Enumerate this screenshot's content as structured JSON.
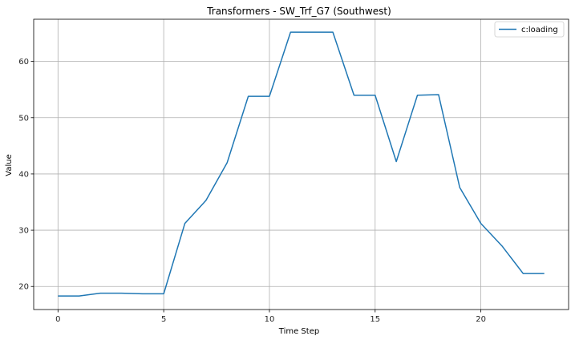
{
  "chart_data": {
    "type": "line",
    "title": "Transformers - SW_Trf_G7 (Southwest)",
    "xlabel": "Time Step",
    "ylabel": "Value",
    "xlim": [
      -1.15,
      24.15
    ],
    "ylim": [
      15.9,
      67.5
    ],
    "xticks": [
      0,
      5,
      10,
      15,
      20
    ],
    "yticks": [
      20,
      30,
      40,
      50,
      60
    ],
    "grid": true,
    "legend_position": "top-right",
    "series": [
      {
        "name": "c:loading",
        "color": "#1f77b4",
        "x": [
          0,
          1,
          2,
          3,
          4,
          5,
          6,
          7,
          8,
          9,
          10,
          11,
          12,
          13,
          14,
          15,
          16,
          17,
          18,
          19,
          20,
          21,
          22,
          23
        ],
        "values": [
          18.3,
          18.3,
          18.8,
          18.8,
          18.7,
          18.7,
          31.2,
          35.3,
          42.0,
          53.8,
          53.8,
          65.2,
          65.2,
          65.2,
          54.0,
          54.0,
          42.2,
          54.0,
          54.1,
          37.6,
          31.2,
          27.2,
          22.3,
          22.3
        ]
      }
    ]
  }
}
